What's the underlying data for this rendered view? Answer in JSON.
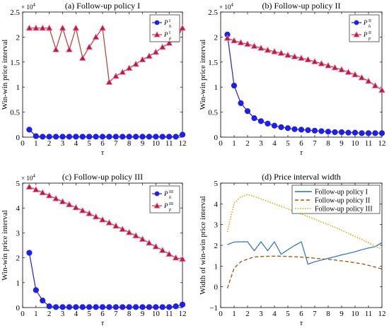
{
  "chart_data": [
    {
      "type": "line",
      "title": "(a) Follow-up policy I",
      "xlabel": "τ",
      "ylabel": "Win-win price interval",
      "exponent_label": "× 10^4",
      "xlim": [
        0,
        12
      ],
      "ylim": [
        0,
        2.5
      ],
      "x_ticks": [
        0,
        1,
        2,
        3,
        4,
        5,
        6,
        7,
        8,
        9,
        10,
        11,
        12
      ],
      "y_ticks": [
        0,
        0.5,
        1,
        1.5,
        2,
        2.5
      ],
      "grid": false,
      "legend": "top-right",
      "x": [
        0.5,
        1,
        1.5,
        2,
        2.5,
        3,
        3.5,
        4,
        4.5,
        5,
        5.5,
        6,
        6.5,
        7,
        7.5,
        8,
        8.5,
        9,
        9.5,
        10,
        10.5,
        11,
        11.5,
        12
      ],
      "series": [
        {
          "name": "P_h^I",
          "label_base": "P",
          "label_sub": "h",
          "label_sup": "I",
          "color": "#1f1fe6",
          "marker": "circle",
          "values": [
            0.15,
            0.02,
            0.01,
            0.01,
            0.01,
            0.01,
            0.01,
            0.01,
            0.01,
            0.01,
            0.01,
            0.01,
            0.01,
            0.01,
            0.01,
            0.01,
            0.01,
            0.01,
            0.01,
            0.01,
            0.01,
            0.01,
            0.01,
            0.05
          ]
        },
        {
          "name": "P_p^I",
          "label_base": "P",
          "label_sub": "p",
          "label_sup": "I",
          "color": "#c0392b",
          "marker": "triangle",
          "values": [
            2.18,
            2.18,
            2.18,
            2.18,
            1.75,
            2.18,
            1.75,
            2.18,
            1.58,
            1.8,
            2.0,
            2.18,
            1.1,
            1.22,
            1.3,
            1.38,
            1.46,
            1.55,
            1.62,
            1.7,
            1.8,
            1.88,
            1.95,
            2.18
          ]
        }
      ]
    },
    {
      "type": "line",
      "title": "(b) Follow-up policy II",
      "xlabel": "τ",
      "ylabel": "Win-win price interval",
      "exponent_label": "× 10^4",
      "xlim": [
        0,
        12
      ],
      "ylim": [
        0,
        2.5
      ],
      "x_ticks": [
        0,
        1,
        2,
        3,
        4,
        5,
        6,
        7,
        8,
        9,
        10,
        11,
        12
      ],
      "y_ticks": [
        0,
        0.5,
        1,
        1.5,
        2,
        2.5
      ],
      "grid": false,
      "legend": "top-right",
      "x": [
        0.5,
        1,
        1.5,
        2,
        2.5,
        3,
        3.5,
        4,
        4.5,
        5,
        5.5,
        6,
        6.5,
        7,
        7.5,
        8,
        8.5,
        9,
        9.5,
        10,
        10.5,
        11,
        11.5,
        12
      ],
      "series": [
        {
          "name": "P_h^II",
          "label_base": "P",
          "label_sub": "h",
          "label_sup": "II",
          "color": "#1f1fe6",
          "marker": "circle",
          "values": [
            2.05,
            1.03,
            0.68,
            0.52,
            0.38,
            0.32,
            0.27,
            0.23,
            0.2,
            0.18,
            0.16,
            0.15,
            0.14,
            0.13,
            0.12,
            0.11,
            0.1,
            0.1,
            0.09,
            0.09,
            0.08,
            0.08,
            0.08,
            0.08
          ]
        },
        {
          "name": "P_p^II",
          "label_base": "P",
          "label_sub": "p",
          "label_sup": "II",
          "color": "#c0392b",
          "marker": "triangle",
          "values": [
            1.98,
            1.93,
            1.89,
            1.86,
            1.82,
            1.78,
            1.74,
            1.71,
            1.68,
            1.64,
            1.61,
            1.58,
            1.55,
            1.51,
            1.47,
            1.43,
            1.39,
            1.35,
            1.3,
            1.25,
            1.19,
            1.12,
            1.03,
            0.94
          ]
        }
      ]
    },
    {
      "type": "line",
      "title": "(c) Follow-up policy III",
      "xlabel": "τ",
      "ylabel": "Win-win price interval",
      "exponent_label": "× 10^4",
      "xlim": [
        0,
        12
      ],
      "ylim": [
        0,
        5
      ],
      "x_ticks": [
        0,
        1,
        2,
        3,
        4,
        5,
        6,
        7,
        8,
        9,
        10,
        11,
        12
      ],
      "y_ticks": [
        0,
        1,
        2,
        3,
        4,
        5
      ],
      "grid": false,
      "legend": "top-right",
      "x": [
        0.5,
        1,
        1.5,
        2,
        2.5,
        3,
        3.5,
        4,
        4.5,
        5,
        5.5,
        6,
        6.5,
        7,
        7.5,
        8,
        8.5,
        9,
        9.5,
        10,
        10.5,
        11,
        11.5,
        12
      ],
      "series": [
        {
          "name": "P_h^III",
          "label_base": "P",
          "label_sub": "h",
          "label_sup": "III",
          "color": "#1f1fe6",
          "marker": "circle",
          "values": [
            2.2,
            0.7,
            0.28,
            0.05,
            0.02,
            0.02,
            0.02,
            0.02,
            0.02,
            0.02,
            0.02,
            0.02,
            0.02,
            0.02,
            0.02,
            0.02,
            0.02,
            0.02,
            0.02,
            0.02,
            0.02,
            0.02,
            0.05,
            0.12
          ]
        },
        {
          "name": "P_p^III",
          "label_base": "P",
          "label_sub": "p",
          "label_sup": "III",
          "color": "#c0392b",
          "marker": "triangle",
          "values": [
            4.85,
            4.74,
            4.62,
            4.5,
            4.38,
            4.26,
            4.14,
            4.02,
            3.9,
            3.78,
            3.65,
            3.53,
            3.41,
            3.28,
            3.15,
            3.02,
            2.89,
            2.75,
            2.6,
            2.45,
            2.3,
            2.15,
            2.0,
            1.95
          ]
        }
      ]
    },
    {
      "type": "line",
      "title": "(d) Price interval width",
      "xlabel": "τ",
      "ylabel": "Width of win-win price interval",
      "xlim": [
        0,
        12
      ],
      "ylim": [
        -1,
        5
      ],
      "x_ticks": [
        0,
        1,
        2,
        3,
        4,
        5,
        6,
        7,
        8,
        9,
        10,
        11,
        12
      ],
      "y_ticks": [
        -1,
        0,
        1,
        2,
        3,
        4,
        5
      ],
      "grid": false,
      "legend": "top-right",
      "x": [
        0.5,
        1,
        1.5,
        2,
        2.5,
        3,
        3.5,
        4,
        4.5,
        5,
        5.5,
        6,
        6.5,
        7,
        7.5,
        8,
        8.5,
        9,
        9.5,
        10,
        10.5,
        11,
        11.5,
        12
      ],
      "series": [
        {
          "name": "Follow-up policy I",
          "color": "#2d6fb8",
          "style": "solid",
          "values": [
            2.03,
            2.16,
            2.17,
            2.17,
            1.74,
            2.17,
            1.74,
            2.17,
            1.57,
            1.79,
            1.99,
            2.17,
            1.09,
            1.21,
            1.29,
            1.37,
            1.45,
            1.54,
            1.61,
            1.69,
            1.79,
            1.87,
            1.94,
            2.13
          ]
        },
        {
          "name": "Follow-up policy II",
          "color": "#8b5a10",
          "style": "dashed",
          "values": [
            -0.07,
            0.9,
            1.21,
            1.34,
            1.44,
            1.46,
            1.47,
            1.48,
            1.48,
            1.46,
            1.45,
            1.43,
            1.41,
            1.38,
            1.35,
            1.32,
            1.29,
            1.25,
            1.21,
            1.16,
            1.11,
            1.04,
            0.95,
            0.86
          ]
        },
        {
          "name": "Follow-up policy III",
          "color": "#d9a400",
          "style": "dotted",
          "values": [
            2.65,
            4.04,
            4.34,
            4.45,
            4.36,
            4.24,
            4.12,
            4.0,
            3.88,
            3.76,
            3.63,
            3.51,
            3.39,
            3.26,
            3.13,
            3.0,
            2.87,
            2.73,
            2.58,
            2.43,
            2.28,
            2.13,
            1.95,
            1.83
          ]
        }
      ]
    }
  ]
}
